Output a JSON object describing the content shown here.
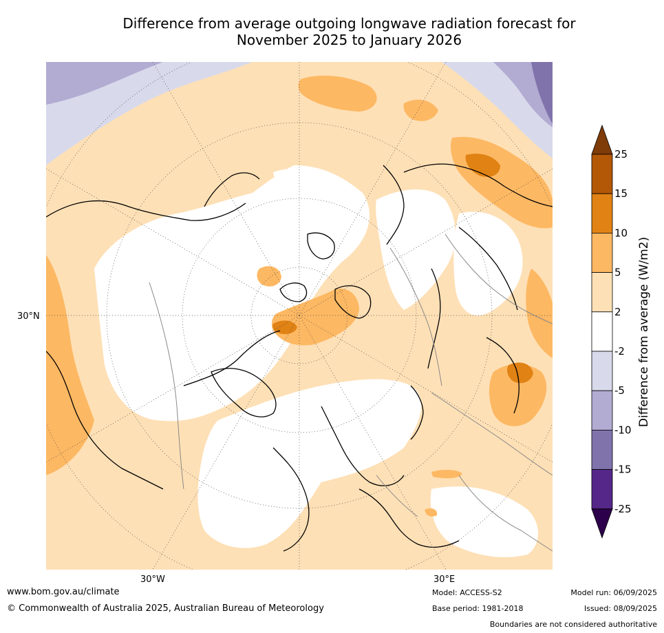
{
  "title_line1": "Difference from average outgoing longwave radiation forecast for",
  "title_line2": "November 2025 to January 2026",
  "map": {
    "lat_label": "30°N",
    "lon_label_west": "30°W",
    "lon_label_east": "30°E"
  },
  "colorbar": {
    "title": "Difference from average (W/m2)",
    "ticks": [
      "25",
      "15",
      "10",
      "5",
      "2",
      "-2",
      "-5",
      "-10",
      "-15",
      "-25"
    ],
    "bins": [
      {
        "range": "> 25",
        "color": "#7f3b08"
      },
      {
        "range": "15 to 25",
        "color": "#b35806"
      },
      {
        "range": "10 to 15",
        "color": "#e08214"
      },
      {
        "range": "5 to 10",
        "color": "#fdb863"
      },
      {
        "range": "2 to 5",
        "color": "#fee0b6"
      },
      {
        "range": "-2 to 2",
        "color": "#ffffff"
      },
      {
        "range": "-5 to -2",
        "color": "#d8daeb"
      },
      {
        "range": "-10 to -5",
        "color": "#b2abd2"
      },
      {
        "range": "-15 to -10",
        "color": "#8073ac"
      },
      {
        "range": "-25 to -15",
        "color": "#542788"
      },
      {
        "range": "< -25",
        "color": "#2d004b"
      }
    ]
  },
  "footer": {
    "url": "www.bom.gov.au/climate",
    "copyright": "© Commonwealth of Australia 2025, Australian Bureau of Meteorology",
    "model": "Model: ACCESS-S2",
    "base_period": "Base period: 1981-2018",
    "model_run": "Model run: 06/09/2025",
    "issued": "Issued: 08/09/2025",
    "disclaimer": "Boundaries are not considered authoritative"
  }
}
